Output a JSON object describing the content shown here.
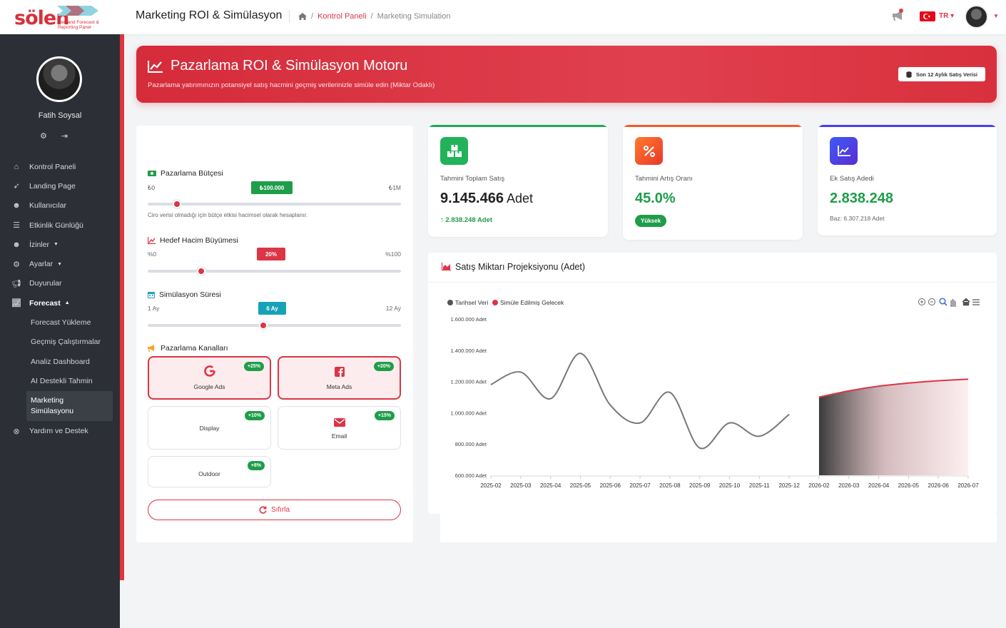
{
  "logo": {
    "text": "sölen",
    "subtitle_1": "Demand Forecast &",
    "subtitle_2": "Reporting Panel"
  },
  "header": {
    "title": "Marketing ROI & Simülasyon",
    "breadcrumb_1": "Kontrol Paneli",
    "breadcrumb_2": "Marketing Simulation",
    "language": "TR"
  },
  "sidebar": {
    "user_name": "Fatih Soysal",
    "items": [
      {
        "label": "Kontrol Paneli",
        "icon": "home-icon"
      },
      {
        "label": "Landing Page",
        "icon": "rocket-icon"
      },
      {
        "label": "Kullanıcılar",
        "icon": "users-icon"
      },
      {
        "label": "Etkinlik Günlüğü",
        "icon": "list-icon"
      },
      {
        "label": "İzinler",
        "icon": "users-gear-icon"
      },
      {
        "label": "Ayarlar",
        "icon": "cogs-icon"
      },
      {
        "label": "Duyurular",
        "icon": "bullhorn-icon"
      },
      {
        "label": "Forecast",
        "icon": "chart-line-icon"
      }
    ],
    "forecast_sub": [
      "Forecast Yükleme",
      "Geçmiş Çalıştırmalar",
      "Analiz Dashboard",
      "AI Destekli Tahmin"
    ],
    "active_sub_1": "Marketing",
    "active_sub_2": "Simülasyonu",
    "help": "Yardım ve Destek"
  },
  "hero": {
    "title": "Pazarlama ROI & Simülasyon Motoru",
    "subtitle": "Pazarlama yatırımınızın potansiyel satış hacmini geçmiş verilerinizle simüle edin (Miktar Odaklı)",
    "button": "Son 12 Aylık Satış Verisi"
  },
  "form": {
    "budget": {
      "label": "Pazarlama Bütçesi",
      "min": "₺0",
      "max": "₺1M",
      "value": "₺100.000",
      "level": 0.1,
      "hint": "Ciro verisi olmadığı için bütçe etkisi hacimsel olarak hesaplanır."
    },
    "growth": {
      "label": "Hedef Hacim Büyümesi",
      "min": "%0",
      "max": "%100",
      "value": "20%",
      "level": 0.2
    },
    "duration": {
      "label": "Simülasyon Süresi",
      "min": "1 Ay",
      "max": "12 Ay",
      "value": "6 Ay",
      "level": 0.45
    },
    "channels_label": "Pazarlama Kanalları",
    "channels": [
      {
        "name": "Google Ads",
        "pct": "+25%",
        "selected": true
      },
      {
        "name": "Meta Ads",
        "pct": "+20%",
        "selected": true
      },
      {
        "name": "Display",
        "pct": "+10%",
        "selected": false
      },
      {
        "name": "Email",
        "pct": "+15%",
        "selected": false
      },
      {
        "name": "Outdoor",
        "pct": "+8%",
        "selected": false
      }
    ],
    "reset": "Sıfırla"
  },
  "stats": [
    {
      "label": "Tahmini Toplam Satış",
      "value": "9.145.466",
      "unit": "Adet",
      "foot": "2.838.248 Adet",
      "color": "#22a855"
    },
    {
      "label": "Tahmini Artış Oranı",
      "value": "45.0%",
      "badge": "Yüksek",
      "color": "#f25a2a"
    },
    {
      "label": "Ek Satış Adedi",
      "value": "2.838.248",
      "foot": "Baz: 6.307.218 Adet",
      "color": "#4a3df0"
    }
  ],
  "chart_title": "Satış Miktarı Projeksiyonu (Adet)",
  "chart_data": {
    "type": "area",
    "legend": [
      "Tarihsel Veri",
      "Simüle Edilmiş Gelecek"
    ],
    "legend_position": "top-left",
    "x": [
      "2025-02",
      "2025-03",
      "2025-04",
      "2025-05",
      "2025-06",
      "2025-07",
      "2025-08",
      "2025-09",
      "2025-10",
      "2025-11",
      "2025-12",
      "2026-02",
      "2026-03",
      "2026-04",
      "2026-05",
      "2026-06",
      "2026-07"
    ],
    "ylim": [
      600000,
      1600000
    ],
    "yticks": [
      "600.000 Adet",
      "800.000 Adet",
      "1.000.000 Adet",
      "1.200.000 Adet",
      "1.400.000 Adet",
      "1.600.000 Adet"
    ],
    "series": [
      {
        "name": "Tarihsel Veri",
        "color": "#777777",
        "values": [
          1180000,
          1260000,
          1090000,
          1380000,
          1050000,
          935000,
          1130000,
          775000,
          935000,
          850000,
          990000,
          null,
          null,
          null,
          null,
          null,
          null
        ]
      },
      {
        "name": "Simüle Edilmiş Gelecek",
        "color": "#dc3545",
        "values": [
          null,
          null,
          null,
          null,
          null,
          null,
          null,
          null,
          null,
          null,
          null,
          1100000,
          1140000,
          1170000,
          1190000,
          1205000,
          1215000
        ]
      }
    ],
    "grid": false
  }
}
